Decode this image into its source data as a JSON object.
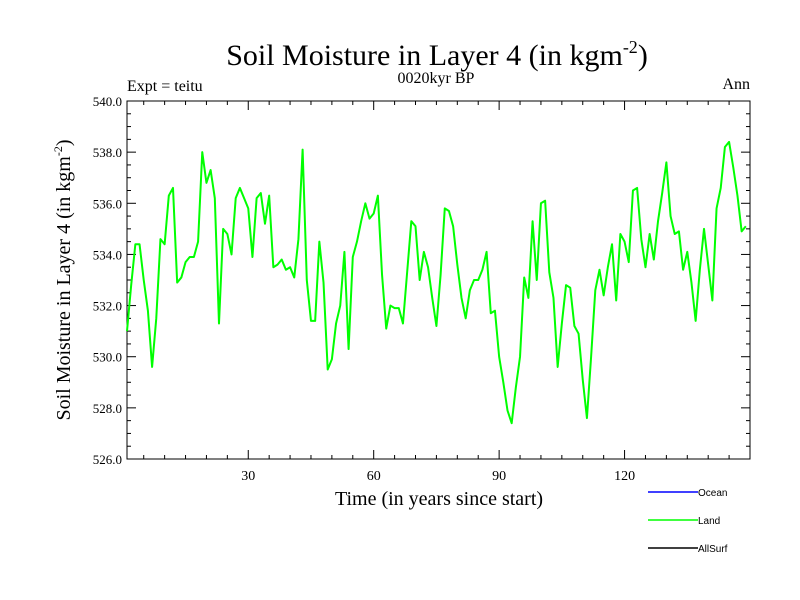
{
  "chart_data": {
    "type": "line",
    "title": "Soil Moisture in Layer 4 (in kgm",
    "title_sup": "-2",
    "title_close": ")",
    "subtitle": "0020kyr BP",
    "left_label": "Expt = teitu",
    "right_label": "Ann",
    "xlabel": "Time (in years since start)",
    "ylabel": "Soil Moisture in Layer 4 (in kgm",
    "ylabel_sup": "-2",
    "ylabel_close": ")",
    "xlim": [
      1,
      150
    ],
    "ylim": [
      526.0,
      540.0
    ],
    "x_ticks": [
      30,
      60,
      90,
      120
    ],
    "x_tick_labels": [
      "30",
      "60",
      "90",
      "120"
    ],
    "y_ticks": [
      526,
      528,
      530,
      532,
      534,
      536,
      538,
      540
    ],
    "y_tick_labels": [
      "526.0",
      "528.0",
      "530.0",
      "532.0",
      "534.0",
      "536.0",
      "538.0",
      "540.0"
    ],
    "series": [
      {
        "name": "Land",
        "color": "#00ff00",
        "values": [
          531.0,
          532.8,
          534.4,
          534.4,
          533.0,
          531.8,
          529.6,
          531.5,
          534.6,
          534.4,
          536.3,
          536.6,
          532.9,
          533.1,
          533.7,
          533.9,
          533.9,
          534.5,
          538.0,
          536.8,
          537.3,
          536.2,
          531.3,
          535.0,
          534.8,
          534.0,
          536.2,
          536.6,
          536.2,
          535.8,
          533.9,
          536.2,
          536.4,
          535.2,
          536.3,
          533.5,
          533.6,
          533.8,
          533.4,
          533.5,
          533.1,
          534.6,
          538.1,
          533.0,
          531.4,
          531.4,
          534.5,
          532.9,
          529.5,
          529.9,
          531.3,
          532.0,
          534.1,
          530.3,
          533.9,
          534.5,
          535.3,
          536.0,
          535.4,
          535.6,
          536.3,
          533.2,
          531.1,
          532.0,
          531.9,
          531.9,
          531.3,
          533.3,
          535.3,
          535.1,
          533.0,
          534.1,
          533.5,
          532.3,
          531.2,
          533.2,
          535.8,
          535.7,
          535.1,
          533.6,
          532.3,
          531.5,
          532.6,
          533.0,
          533.0,
          533.4,
          534.1,
          531.7,
          531.8,
          530.0,
          529.0,
          527.9,
          527.4,
          528.8,
          530.0,
          533.1,
          532.3,
          535.3,
          533.0,
          536.0,
          536.1,
          533.3,
          532.3,
          529.6,
          531.3,
          532.8,
          532.7,
          531.2,
          530.9,
          529.1,
          527.6,
          530.0,
          532.6,
          533.4,
          532.4,
          533.5,
          534.4,
          532.2,
          534.8,
          534.5,
          533.7,
          536.5,
          536.6,
          534.6,
          533.5,
          534.8,
          533.8,
          535.3,
          536.4,
          537.6,
          535.5,
          534.8,
          534.9,
          533.4,
          534.1,
          532.9,
          531.4,
          533.4,
          535.0,
          533.6,
          532.2,
          535.8,
          536.6,
          538.2,
          538.4,
          537.4,
          536.3,
          534.9,
          535.1
        ]
      }
    ],
    "legend": [
      {
        "label": "Ocean",
        "color": "#0000ff"
      },
      {
        "label": "Land",
        "color": "#00ff00"
      },
      {
        "label": "AllSurf",
        "color": "#000000"
      }
    ],
    "legend_position": "bottom-right",
    "grid": false
  }
}
